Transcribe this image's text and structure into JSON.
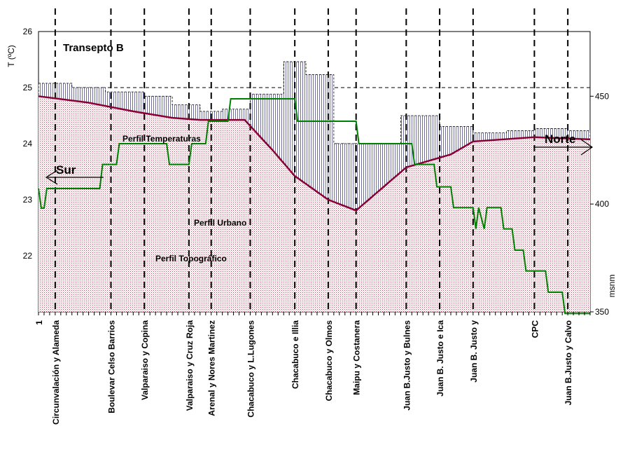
{
  "chart_data": {
    "type": "line",
    "title": "Transepto B",
    "y_left_label": "T (ºC)",
    "y_right_label": "msnm",
    "y_left_ticks": [
      "22",
      "23",
      "24",
      "25",
      "26"
    ],
    "y_right_ticks": [
      "350",
      "400",
      "450"
    ],
    "y_left_range": [
      21,
      26
    ],
    "y_right_range": [
      350,
      480
    ],
    "x_count": 100,
    "x_first_label": "1",
    "categories": [
      {
        "label": "Circunvalación y Alameda",
        "x": 4
      },
      {
        "label": "Boulevar Celso Barrios",
        "x": 14
      },
      {
        "label": "Valparaiso y Copina",
        "x": 20
      },
      {
        "label": "Valparaiso y Cruz Roja",
        "x": 28
      },
      {
        "label": "Arenal y Nores Martinez",
        "x": 32
      },
      {
        "label": "Chacabuco y L.Lugones",
        "x": 39
      },
      {
        "label": "Chacabuco e Illia",
        "x": 47
      },
      {
        "label": "Chacabuco y Olmos",
        "x": 53
      },
      {
        "label": "Maipu y Costanera",
        "x": 58
      },
      {
        "label": "Juan B.Justo y Bulnes",
        "x": 67
      },
      {
        "label": "Juan B. Justo e Ica",
        "x": 73
      },
      {
        "label": "Juan B. Justo y",
        "x": 79
      },
      {
        "label": "CPC",
        "x": 90
      },
      {
        "label": "Juan B.Justo y Calvo",
        "x": 96
      }
    ],
    "annotations": {
      "temperature": "Perfil Temperaturas",
      "urban": "Perfil Urbano",
      "topographic": "Perfil Topográfico",
      "south": "Sur",
      "north": "Norte"
    },
    "series": [
      {
        "name": "Perfil Temperaturas",
        "axis": "left",
        "color": "#008000",
        "points": [
          [
            1,
            23.2
          ],
          [
            1.5,
            22.85
          ],
          [
            2,
            22.85
          ],
          [
            2.5,
            23.2
          ],
          [
            12,
            23.2
          ],
          [
            12.5,
            23.63
          ],
          [
            15,
            23.63
          ],
          [
            15.5,
            24.0
          ],
          [
            24,
            24.0
          ],
          [
            24.5,
            23.63
          ],
          [
            28,
            23.63
          ],
          [
            28.5,
            24.0
          ],
          [
            31,
            24.0
          ],
          [
            31.5,
            24.4
          ],
          [
            35,
            24.4
          ],
          [
            35.5,
            24.8
          ],
          [
            47,
            24.8
          ],
          [
            47.5,
            24.4
          ],
          [
            58,
            24.4
          ],
          [
            58.5,
            24.0
          ],
          [
            68,
            24.0
          ],
          [
            68.5,
            23.63
          ],
          [
            72,
            23.63
          ],
          [
            72.5,
            23.23
          ],
          [
            75,
            23.23
          ],
          [
            75.5,
            22.86
          ],
          [
            79,
            22.86
          ],
          [
            79.5,
            22.48
          ],
          [
            80,
            22.86
          ],
          [
            81,
            22.48
          ],
          [
            81.5,
            22.86
          ],
          [
            84,
            22.86
          ],
          [
            84.5,
            22.48
          ],
          [
            86,
            22.48
          ],
          [
            86.5,
            22.1
          ],
          [
            88,
            22.1
          ],
          [
            88.5,
            21.73
          ],
          [
            92,
            21.73
          ],
          [
            92.5,
            21.35
          ],
          [
            95,
            21.35
          ],
          [
            95.5,
            20.97
          ],
          [
            100,
            20.97
          ]
        ]
      },
      {
        "name": "Perfil Topográfico",
        "axis": "right",
        "color": "#8b0033",
        "points": [
          [
            1,
            450
          ],
          [
            10,
            447
          ],
          [
            18,
            443
          ],
          [
            25,
            440
          ],
          [
            30,
            439
          ],
          [
            38,
            439
          ],
          [
            43,
            425
          ],
          [
            47,
            413
          ],
          [
            53,
            402
          ],
          [
            58,
            397
          ],
          [
            67,
            417
          ],
          [
            75,
            423
          ],
          [
            79,
            429
          ],
          [
            90,
            431
          ],
          [
            100,
            430
          ]
        ]
      },
      {
        "name": "Perfil Urbano",
        "axis": "right",
        "color": "#000080",
        "steps": [
          [
            1,
            456
          ],
          [
            7,
            454
          ],
          [
            13,
            452
          ],
          [
            20,
            450
          ],
          [
            25,
            446
          ],
          [
            30,
            443
          ],
          [
            34,
            444
          ],
          [
            39,
            451
          ],
          [
            45,
            466
          ],
          [
            49,
            460
          ],
          [
            54,
            428
          ],
          [
            58,
            428
          ],
          [
            62,
            428
          ],
          [
            66,
            441
          ],
          [
            73,
            436
          ],
          [
            79,
            433
          ],
          [
            85,
            434
          ],
          [
            90,
            435
          ],
          [
            96,
            434
          ],
          [
            100,
            434
          ]
        ]
      }
    ]
  }
}
